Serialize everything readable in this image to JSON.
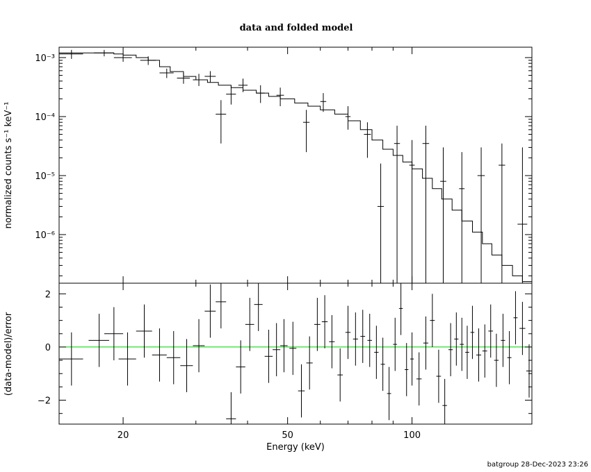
{
  "chart_data": [
    {
      "type": "scatter",
      "title": "data and folded model",
      "xlabel": "Energy (keV)",
      "ylabel": "normalized counts s⁻¹ keV⁻¹",
      "x_scale": "log",
      "y_scale": "log",
      "xlim": [
        14,
        195
      ],
      "ylim": [
        1.5e-07,
        0.0015
      ],
      "y_ticks": [
        {
          "value": 0.001,
          "label": "10⁻³"
        },
        {
          "value": 0.0001,
          "label": "10⁻⁴"
        },
        {
          "value": 1e-05,
          "label": "10⁻⁵"
        },
        {
          "value": 1e-06,
          "label": "10⁻⁶"
        }
      ],
      "data": [
        {
          "x": 15,
          "xlo": 14,
          "xhi": 16,
          "y": 0.00115,
          "ylo": 0.00095,
          "yhi": 0.00135
        },
        {
          "x": 18,
          "xlo": 17,
          "xhi": 19,
          "y": 0.0012,
          "ylo": 0.00105,
          "yhi": 0.00135
        },
        {
          "x": 20,
          "xlo": 19,
          "xhi": 21,
          "y": 0.001,
          "ylo": 0.00085,
          "yhi": 0.00115
        },
        {
          "x": 23,
          "xlo": 22,
          "xhi": 24,
          "y": 0.0009,
          "ylo": 0.00075,
          "yhi": 0.00105
        },
        {
          "x": 25.5,
          "xlo": 24.5,
          "xhi": 26.5,
          "y": 0.00055,
          "ylo": 0.00045,
          "yhi": 0.00065
        },
        {
          "x": 28,
          "xlo": 27,
          "xhi": 29,
          "y": 0.00045,
          "ylo": 0.00036,
          "yhi": 0.00055
        },
        {
          "x": 30.5,
          "xlo": 29.5,
          "xhi": 31.5,
          "y": 0.00042,
          "ylo": 0.00033,
          "yhi": 0.00053
        },
        {
          "x": 32.5,
          "xlo": 31.5,
          "xhi": 33.5,
          "y": 0.00048,
          "ylo": 0.00038,
          "yhi": 0.00059
        },
        {
          "x": 34.5,
          "xlo": 33.5,
          "xhi": 35.5,
          "y": 0.00011,
          "ylo": 3.5e-05,
          "yhi": 0.00019
        },
        {
          "x": 36.5,
          "xlo": 35.5,
          "xhi": 37.5,
          "y": 0.00024,
          "ylo": 0.00016,
          "yhi": 0.00033
        },
        {
          "x": 39,
          "xlo": 38,
          "xhi": 40,
          "y": 0.00034,
          "ylo": 0.00026,
          "yhi": 0.00044
        },
        {
          "x": 43,
          "xlo": 42,
          "xhi": 44,
          "y": 0.00025,
          "ylo": 0.00017,
          "yhi": 0.00034
        },
        {
          "x": 48,
          "xlo": 47,
          "xhi": 49,
          "y": 0.00023,
          "ylo": 0.00015,
          "yhi": 0.00031
        },
        {
          "x": 55.5,
          "xlo": 54.5,
          "xhi": 56.5,
          "y": 8e-05,
          "ylo": 2.5e-05,
          "yhi": 0.00013
        },
        {
          "x": 61,
          "xlo": 60,
          "xhi": 62,
          "y": 0.00018,
          "ylo": 0.00012,
          "yhi": 0.00025
        },
        {
          "x": 70,
          "xlo": 69,
          "xhi": 71,
          "y": 0.0001,
          "ylo": 6e-05,
          "yhi": 0.00015
        },
        {
          "x": 78,
          "xlo": 76.5,
          "xhi": 79.5,
          "y": 5e-05,
          "ylo": 2e-05,
          "yhi": 8e-05
        },
        {
          "x": 84,
          "xlo": 82.5,
          "xhi": 85.5,
          "y": 3e-06,
          "ylo": 1.5e-07,
          "yhi": 1.6e-05
        },
        {
          "x": 92,
          "xlo": 90.5,
          "xhi": 93.5,
          "y": 3.5e-05,
          "ylo": 1.5e-07,
          "yhi": 7e-05
        },
        {
          "x": 100,
          "xlo": 98.5,
          "xhi": 101.5,
          "y": 1.5e-05,
          "ylo": 1.5e-07,
          "yhi": 4e-05
        },
        {
          "x": 108,
          "xlo": 106,
          "xhi": 110,
          "y": 3.5e-05,
          "ylo": 1.5e-07,
          "yhi": 7e-05
        },
        {
          "x": 119,
          "xlo": 117,
          "xhi": 121,
          "y": 8e-06,
          "ylo": 1.5e-07,
          "yhi": 3e-05
        },
        {
          "x": 132,
          "xlo": 130,
          "xhi": 134,
          "y": 6e-06,
          "ylo": 1.5e-07,
          "yhi": 2.5e-05
        },
        {
          "x": 147,
          "xlo": 144,
          "xhi": 150,
          "y": 1e-05,
          "ylo": 1.5e-07,
          "yhi": 3e-05
        },
        {
          "x": 165,
          "xlo": 162,
          "xhi": 168,
          "y": 1.5e-05,
          "ylo": 1.5e-07,
          "yhi": 3.5e-05
        },
        {
          "x": 185,
          "xlo": 180,
          "xhi": 190,
          "y": 1.5e-06,
          "ylo": 1.5e-07,
          "yhi": 3e-05
        }
      ],
      "model_step": [
        {
          "x": 14,
          "y": 0.0012
        },
        {
          "x": 17,
          "y": 0.0012
        },
        {
          "x": 19,
          "y": 0.00115
        },
        {
          "x": 20,
          "y": 0.0011
        },
        {
          "x": 21.5,
          "y": 0.001
        },
        {
          "x": 23,
          "y": 0.0009
        },
        {
          "x": 24.5,
          "y": 0.0007
        },
        {
          "x": 26,
          "y": 0.00058
        },
        {
          "x": 28,
          "y": 0.00048
        },
        {
          "x": 30,
          "y": 0.00042
        },
        {
          "x": 32,
          "y": 0.00038
        },
        {
          "x": 34,
          "y": 0.00034
        },
        {
          "x": 36.5,
          "y": 0.00031
        },
        {
          "x": 39,
          "y": 0.00028
        },
        {
          "x": 42,
          "y": 0.00025
        },
        {
          "x": 45,
          "y": 0.00022
        },
        {
          "x": 48,
          "y": 0.0002
        },
        {
          "x": 52,
          "y": 0.00017
        },
        {
          "x": 56,
          "y": 0.00015
        },
        {
          "x": 60,
          "y": 0.00013
        },
        {
          "x": 65,
          "y": 0.00011
        },
        {
          "x": 70,
          "y": 8.5e-05
        },
        {
          "x": 75,
          "y": 6e-05
        },
        {
          "x": 80,
          "y": 4e-05
        },
        {
          "x": 85,
          "y": 2.8e-05
        },
        {
          "x": 90,
          "y": 2.2e-05
        },
        {
          "x": 95,
          "y": 1.7e-05
        },
        {
          "x": 100,
          "y": 1.3e-05
        },
        {
          "x": 106,
          "y": 9e-06
        },
        {
          "x": 112,
          "y": 6e-06
        },
        {
          "x": 118,
          "y": 4e-06
        },
        {
          "x": 125,
          "y": 2.6e-06
        },
        {
          "x": 132,
          "y": 1.7e-06
        },
        {
          "x": 140,
          "y": 1.1e-06
        },
        {
          "x": 148,
          "y": 7e-07
        },
        {
          "x": 156,
          "y": 4.5e-07
        },
        {
          "x": 165,
          "y": 3e-07
        },
        {
          "x": 175,
          "y": 2e-07
        },
        {
          "x": 185,
          "y": 1.6e-07
        },
        {
          "x": 195,
          "y": 1.5e-07
        }
      ]
    },
    {
      "type": "scatter",
      "xlabel": "Energy (keV)",
      "ylabel": "(data-model)/error",
      "x_scale": "log",
      "xlim": [
        14,
        195
      ],
      "ylim": [
        -2.9,
        2.4
      ],
      "x_ticks": [
        {
          "value": 20,
          "label": "20"
        },
        {
          "value": 50,
          "label": "50"
        },
        {
          "value": 100,
          "label": "100"
        }
      ],
      "y_ticks": [
        {
          "value": 2,
          "label": "2"
        },
        {
          "value": 0,
          "label": "0"
        },
        {
          "value": -2,
          "label": "−2"
        }
      ],
      "reference_line": {
        "y": 0,
        "color": "#00cc00"
      },
      "data": [
        {
          "x": 15,
          "xlo": 14,
          "xhi": 16,
          "y": -0.45,
          "err": 1
        },
        {
          "x": 17.5,
          "xlo": 16.5,
          "xhi": 18.5,
          "y": 0.25,
          "err": 1
        },
        {
          "x": 19,
          "xlo": 18,
          "xhi": 20,
          "y": 0.5,
          "err": 1
        },
        {
          "x": 20.5,
          "xlo": 19.5,
          "xhi": 21.5,
          "y": -0.45,
          "err": 1
        },
        {
          "x": 22.5,
          "xlo": 21.5,
          "xhi": 23.5,
          "y": 0.6,
          "err": 1
        },
        {
          "x": 24.5,
          "xlo": 23.5,
          "xhi": 25.5,
          "y": -0.3,
          "err": 1
        },
        {
          "x": 26.5,
          "xlo": 25.5,
          "xhi": 27.5,
          "y": -0.4,
          "err": 1
        },
        {
          "x": 28.5,
          "xlo": 27.5,
          "xhi": 29.5,
          "y": -0.7,
          "err": 1
        },
        {
          "x": 30.5,
          "xlo": 29.5,
          "xhi": 31.5,
          "y": 0.05,
          "err": 1
        },
        {
          "x": 32.5,
          "xlo": 31.5,
          "xhi": 33.5,
          "y": 1.35,
          "err": 1
        },
        {
          "x": 34.5,
          "xlo": 33.5,
          "xhi": 35.5,
          "y": 1.7,
          "err": 1
        },
        {
          "x": 36.5,
          "xlo": 35.5,
          "xhi": 37.5,
          "y": -2.7,
          "err": 1
        },
        {
          "x": 38.5,
          "xlo": 37.5,
          "xhi": 39.5,
          "y": -0.75,
          "err": 1
        },
        {
          "x": 40.5,
          "xlo": 39.5,
          "xhi": 41.5,
          "y": 0.85,
          "err": 1
        },
        {
          "x": 42.5,
          "xlo": 41.5,
          "xhi": 43.5,
          "y": 1.6,
          "err": 1
        },
        {
          "x": 45,
          "xlo": 44,
          "xhi": 46,
          "y": -0.35,
          "err": 1
        },
        {
          "x": 47,
          "xlo": 46,
          "xhi": 48,
          "y": -0.1,
          "err": 1
        },
        {
          "x": 49,
          "xlo": 48,
          "xhi": 50,
          "y": 0.05,
          "err": 1
        },
        {
          "x": 51.5,
          "xlo": 50.5,
          "xhi": 52.5,
          "y": -0.05,
          "err": 1
        },
        {
          "x": 54,
          "xlo": 53,
          "xhi": 55,
          "y": -1.65,
          "err": 1
        },
        {
          "x": 56.5,
          "xlo": 55.5,
          "xhi": 57.5,
          "y": -0.6,
          "err": 1
        },
        {
          "x": 59,
          "xlo": 58,
          "xhi": 60,
          "y": 0.85,
          "err": 1
        },
        {
          "x": 61.5,
          "xlo": 60.5,
          "xhi": 62.5,
          "y": 0.95,
          "err": 1
        },
        {
          "x": 64,
          "xlo": 63,
          "xhi": 65,
          "y": 0.2,
          "err": 1
        },
        {
          "x": 67,
          "xlo": 66,
          "xhi": 68,
          "y": -1.05,
          "err": 1
        },
        {
          "x": 70,
          "xlo": 69,
          "xhi": 71,
          "y": 0.55,
          "err": 1
        },
        {
          "x": 73,
          "xlo": 72,
          "xhi": 74,
          "y": 0.3,
          "err": 1
        },
        {
          "x": 76,
          "xlo": 75,
          "xhi": 77,
          "y": 0.4,
          "err": 1
        },
        {
          "x": 79,
          "xlo": 78,
          "xhi": 80,
          "y": 0.25,
          "err": 1
        },
        {
          "x": 82,
          "xlo": 81,
          "xhi": 83,
          "y": -0.2,
          "err": 1
        },
        {
          "x": 85,
          "xlo": 84,
          "xhi": 86,
          "y": -0.65,
          "err": 1
        },
        {
          "x": 88,
          "xlo": 87,
          "xhi": 89,
          "y": -1.75,
          "err": 1
        },
        {
          "x": 91,
          "xlo": 90,
          "xhi": 92,
          "y": 0.1,
          "err": 1
        },
        {
          "x": 94,
          "xlo": 93,
          "xhi": 95,
          "y": 1.45,
          "err": 1
        },
        {
          "x": 97,
          "xlo": 96,
          "xhi": 98,
          "y": -0.85,
          "err": 1
        },
        {
          "x": 100,
          "xlo": 99,
          "xhi": 101,
          "y": -0.45,
          "err": 1
        },
        {
          "x": 104,
          "xlo": 102.5,
          "xhi": 105.5,
          "y": -1.2,
          "err": 1
        },
        {
          "x": 108,
          "xlo": 106.5,
          "xhi": 109.5,
          "y": 0.15,
          "err": 1
        },
        {
          "x": 112,
          "xlo": 110.5,
          "xhi": 113.5,
          "y": 1.0,
          "err": 1
        },
        {
          "x": 116,
          "xlo": 114.5,
          "xhi": 117.5,
          "y": -1.1,
          "err": 1
        },
        {
          "x": 120,
          "xlo": 118.5,
          "xhi": 121.5,
          "y": -2.2,
          "err": 1
        },
        {
          "x": 124,
          "xlo": 122.5,
          "xhi": 125.5,
          "y": -0.1,
          "err": 1
        },
        {
          "x": 128,
          "xlo": 126.5,
          "xhi": 129.5,
          "y": 0.3,
          "err": 1
        },
        {
          "x": 132,
          "xlo": 130.5,
          "xhi": 133.5,
          "y": 0.1,
          "err": 1
        },
        {
          "x": 136,
          "xlo": 134.5,
          "xhi": 137.5,
          "y": -0.2,
          "err": 1
        },
        {
          "x": 140,
          "xlo": 138.5,
          "xhi": 141.5,
          "y": 0.55,
          "err": 1
        },
        {
          "x": 145,
          "xlo": 143,
          "xhi": 147,
          "y": -0.3,
          "err": 1
        },
        {
          "x": 150,
          "xlo": 148,
          "xhi": 152,
          "y": -0.15,
          "err": 1
        },
        {
          "x": 155,
          "xlo": 153,
          "xhi": 157,
          "y": 0.6,
          "err": 1
        },
        {
          "x": 160,
          "xlo": 158,
          "xhi": 162,
          "y": -0.5,
          "err": 1
        },
        {
          "x": 166,
          "xlo": 164,
          "xhi": 168,
          "y": 0.25,
          "err": 1
        },
        {
          "x": 172,
          "xlo": 170,
          "xhi": 174,
          "y": -0.4,
          "err": 1
        },
        {
          "x": 178,
          "xlo": 176,
          "xhi": 180,
          "y": 1.1,
          "err": 1
        },
        {
          "x": 185,
          "xlo": 182,
          "xhi": 188,
          "y": 0.7,
          "err": 1
        },
        {
          "x": 192,
          "xlo": 189,
          "xhi": 195,
          "y": -0.9,
          "err": 1
        }
      ]
    }
  ],
  "footer": "batgroup 28-Dec-2023 23:26"
}
